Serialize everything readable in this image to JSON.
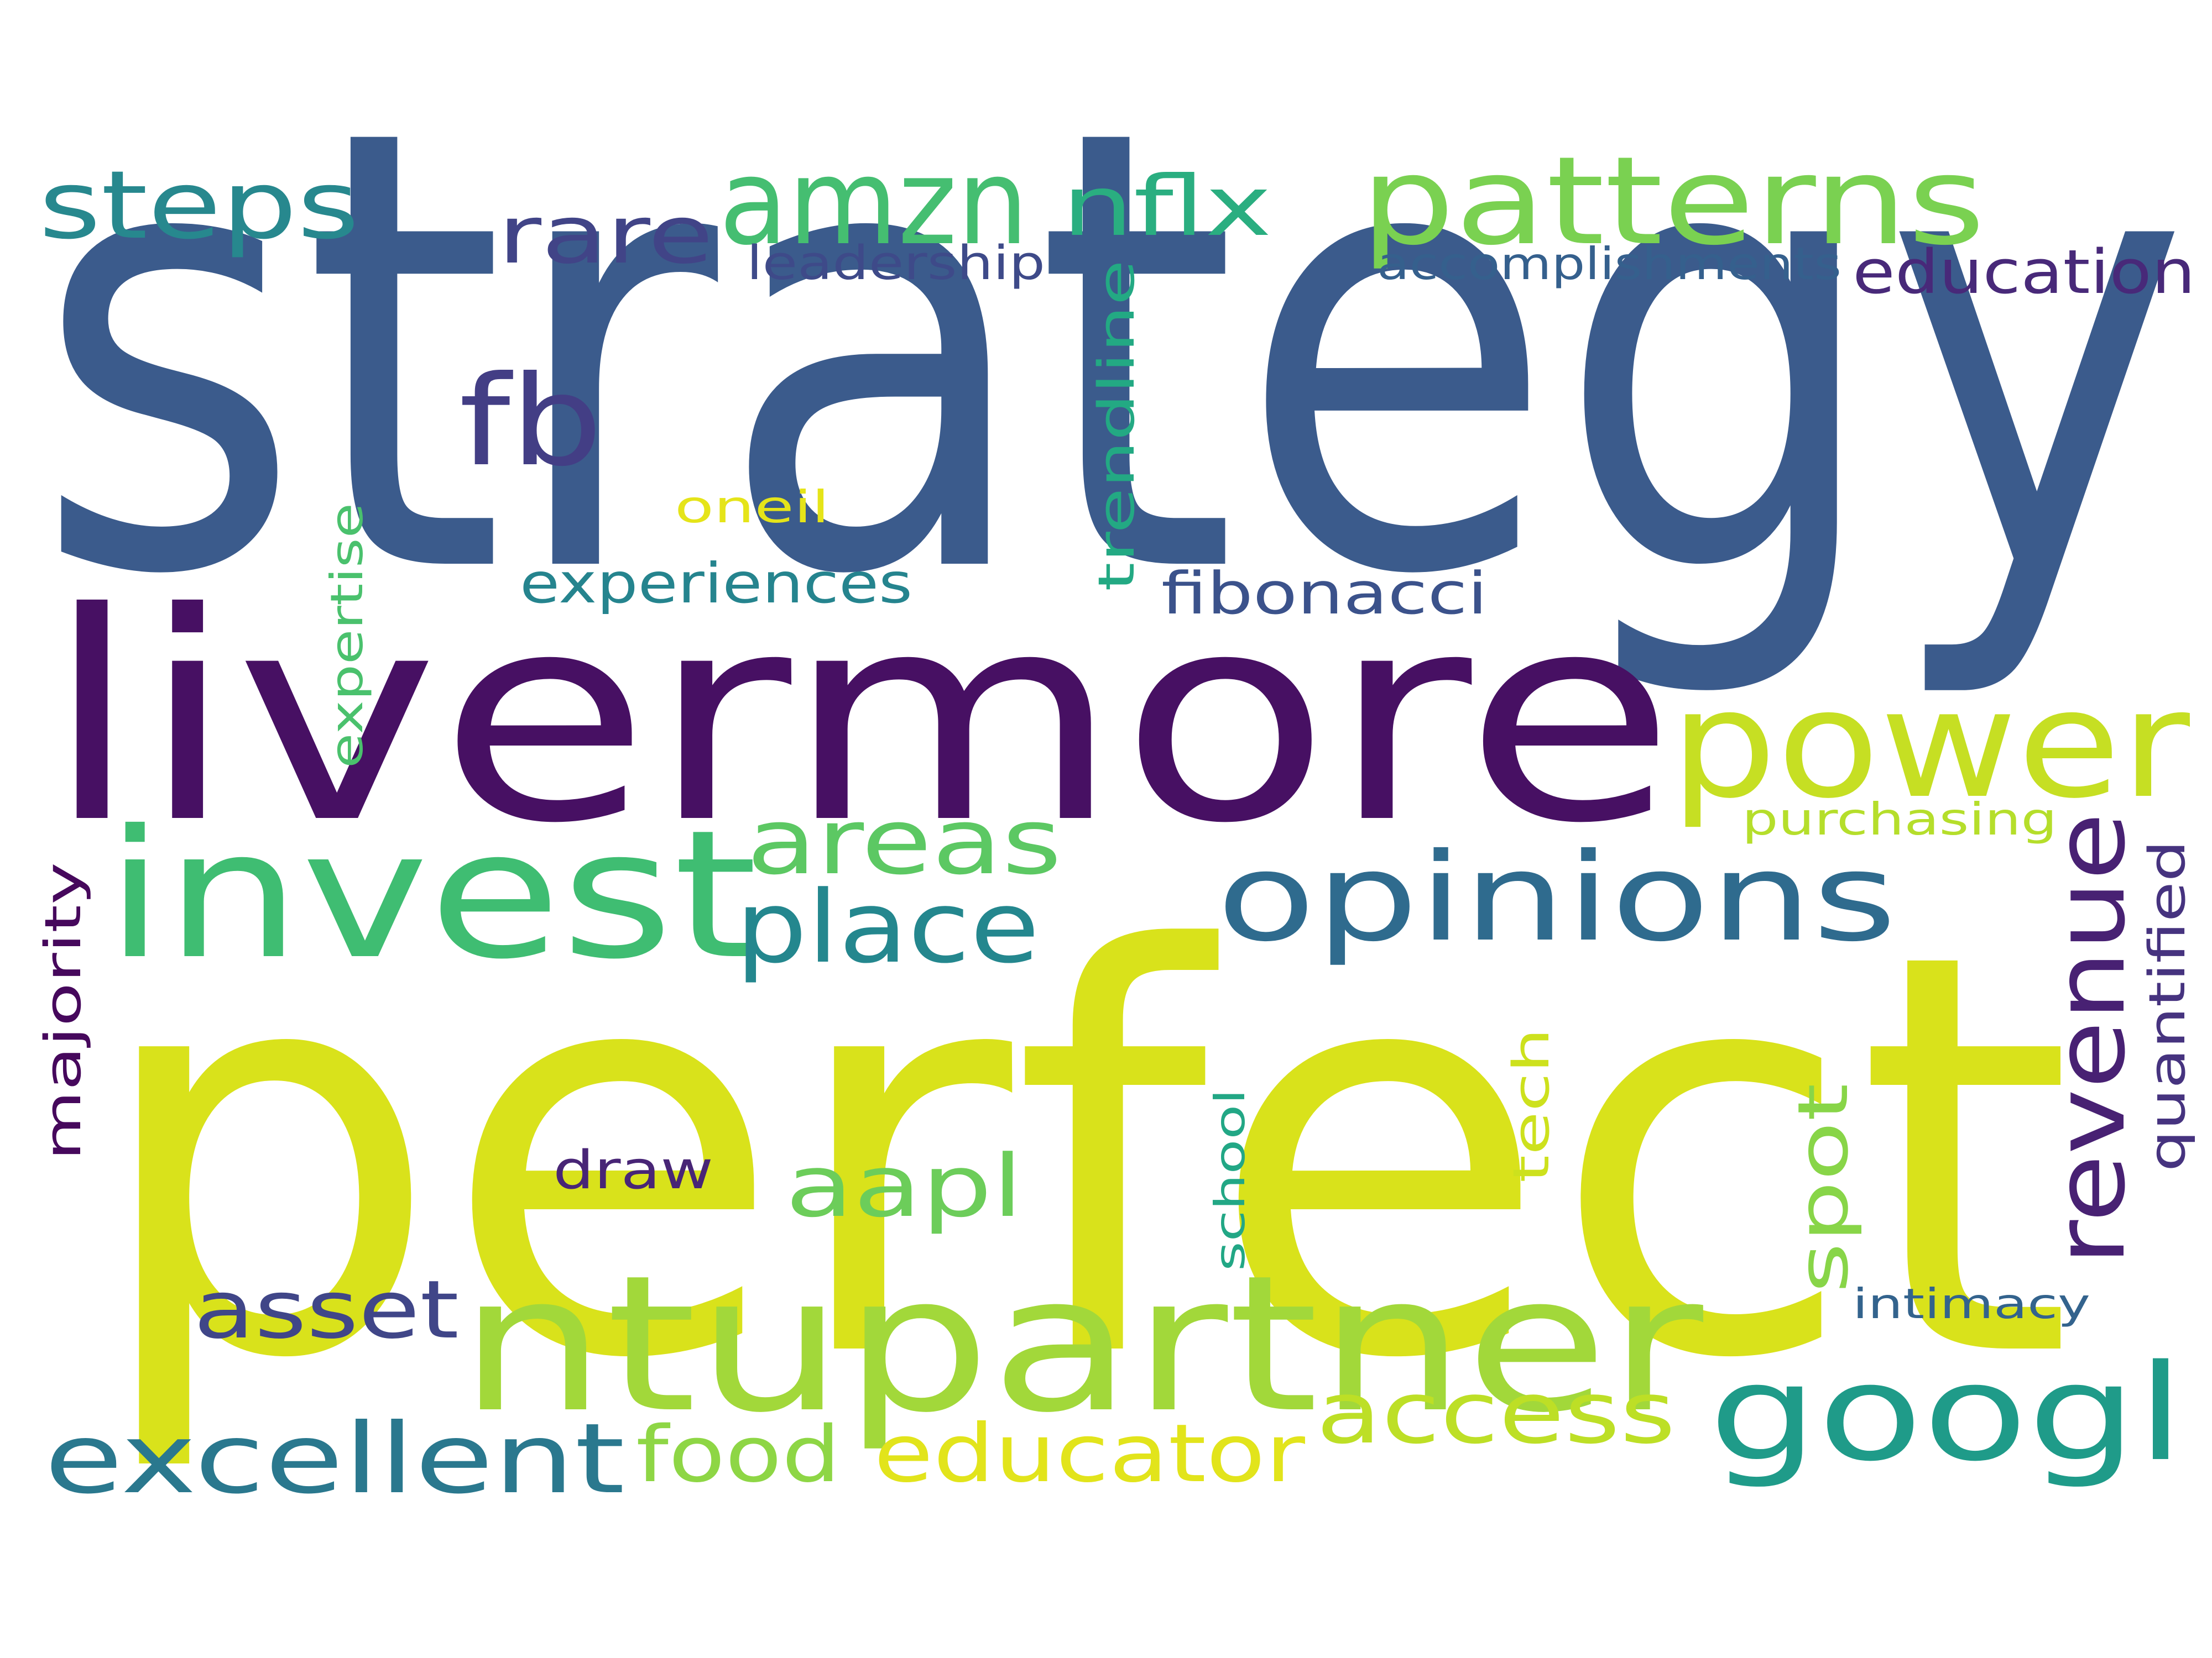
{
  "words": [
    {
      "text": "strategy",
      "color": "#3b5b8c"
    },
    {
      "text": "perfect",
      "color": "#d9e21b"
    },
    {
      "text": "livermore",
      "color": "#471063"
    },
    {
      "text": "ntupartner",
      "color": "#a2d83a"
    },
    {
      "text": "invest",
      "color": "#3fbd72"
    },
    {
      "text": "power",
      "color": "#c6df23"
    },
    {
      "text": "opinions",
      "color": "#2f6b8e"
    },
    {
      "text": "googl",
      "color": "#1f9b89"
    },
    {
      "text": "patterns",
      "color": "#7ad151"
    },
    {
      "text": "amzn",
      "color": "#45be71"
    },
    {
      "text": "excellent",
      "color": "#2a788e"
    },
    {
      "text": "steps",
      "color": "#27888e"
    },
    {
      "text": "place",
      "color": "#24878e"
    },
    {
      "text": "areas",
      "color": "#5cc863"
    },
    {
      "text": "revenue",
      "color": "#482173"
    },
    {
      "text": "access",
      "color": "#bddf26"
    },
    {
      "text": "educator",
      "color": "#e2e41b"
    },
    {
      "text": "food",
      "color": "#8ed645"
    },
    {
      "text": "aapl",
      "color": "#6ccd5a"
    },
    {
      "text": "fb",
      "color": "#433e85"
    },
    {
      "text": "nflx",
      "color": "#2aae80"
    },
    {
      "text": "rare",
      "color": "#414487"
    },
    {
      "text": "asset",
      "color": "#404688"
    },
    {
      "text": "spot",
      "color": "#88d548"
    },
    {
      "text": "education",
      "color": "#482979"
    },
    {
      "text": "fibonacci",
      "color": "#3b528b"
    },
    {
      "text": "experiences",
      "color": "#25848e"
    },
    {
      "text": "accomplishments",
      "color": "#35608d"
    },
    {
      "text": "leadership",
      "color": "#3e4a89"
    },
    {
      "text": "majority",
      "color": "#46085c"
    },
    {
      "text": "quantified",
      "color": "#46337f"
    },
    {
      "text": "trendline",
      "color": "#23a983"
    },
    {
      "text": "draw",
      "color": "#482576"
    },
    {
      "text": "purchasing",
      "color": "#b5de2b"
    },
    {
      "text": "expertise",
      "color": "#4ac16d"
    },
    {
      "text": "oneil",
      "color": "#e5e419"
    },
    {
      "text": "tech",
      "color": "#cde11d"
    },
    {
      "text": "school",
      "color": "#22a785"
    },
    {
      "text": "intimacy",
      "color": "#33638d"
    }
  ]
}
